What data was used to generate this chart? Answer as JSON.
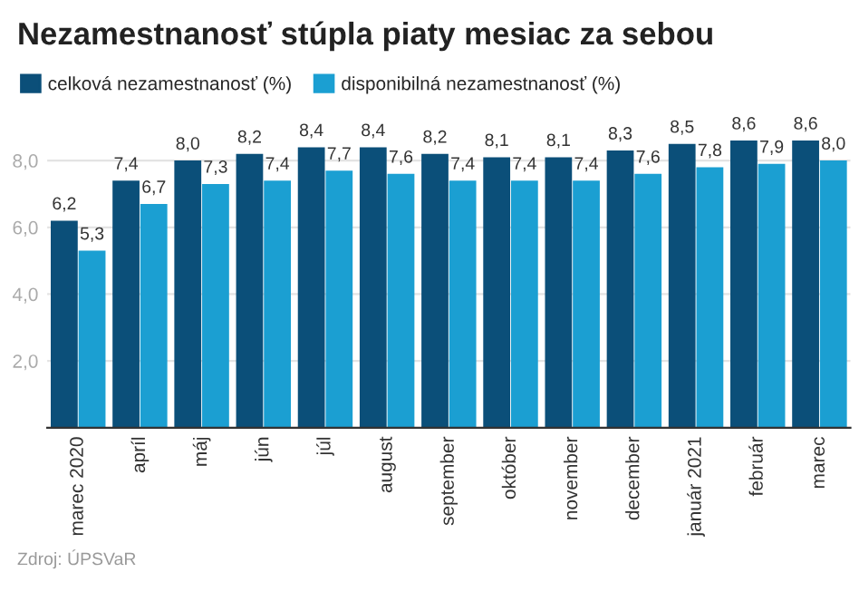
{
  "chart_data": {
    "type": "bar",
    "title": "Nezamestnanosť stúpla piaty mesiac za sebou",
    "categories": [
      "marec 2020",
      "apríl",
      "máj",
      "jún",
      "júl",
      "august",
      "september",
      "október",
      "november",
      "december",
      "január 2021",
      "február",
      "marec"
    ],
    "series": [
      {
        "name": "celková nezamestnanosť (%)",
        "color": "#0b4f79",
        "values": [
          6.2,
          7.4,
          8.0,
          8.2,
          8.4,
          8.4,
          8.2,
          8.1,
          8.1,
          8.3,
          8.5,
          8.6,
          8.6
        ],
        "value_labels": [
          "6,2",
          "7,4",
          "8,0",
          "8,2",
          "8,4",
          "8,4",
          "8,2",
          "8,1",
          "8,1",
          "8,3",
          "8,5",
          "8,6",
          "8,6"
        ]
      },
      {
        "name": "disponibilná nezamestnanosť (%)",
        "color": "#1b9fd2",
        "values": [
          5.3,
          6.7,
          7.3,
          7.4,
          7.7,
          7.6,
          7.4,
          7.4,
          7.4,
          7.6,
          7.8,
          7.9,
          8.0
        ],
        "value_labels": [
          "5,3",
          "6,7",
          "7,3",
          "7,4",
          "7,7",
          "7,6",
          "7,4",
          "7,4",
          "7,4",
          "7,6",
          "7,8",
          "7,9",
          "8,0"
        ]
      }
    ],
    "ylim": [
      0,
      8.6
    ],
    "yticks": [
      {
        "value": 2,
        "label": "2,0"
      },
      {
        "value": 4,
        "label": "4,0"
      },
      {
        "value": 6,
        "label": "6,0"
      },
      {
        "value": 8,
        "label": "8,0"
      }
    ],
    "grid": "y",
    "legend": "top left",
    "annotations": [
      "Zdroj: ÚPSVaR"
    ]
  }
}
